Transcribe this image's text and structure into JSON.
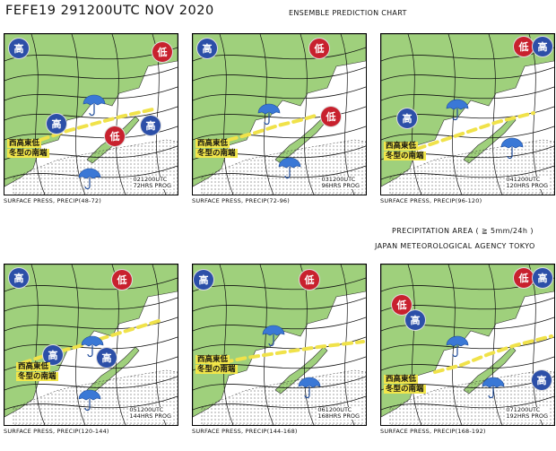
{
  "header": {
    "title": "FEFE19  291200UTC NOV 2020",
    "subtitle": "ENSEMBLE PREDICTION CHART"
  },
  "legend": {
    "precip_area": "PRECIPITATION AREA ( ≧ 5mm/24h )",
    "agency": "JAPAN METEOROLOGICAL AGENCY TOKYO"
  },
  "labels": {
    "high": "高",
    "low": "低",
    "winter_line1": "西高東低",
    "winter_line2": "冬型の南端"
  },
  "panels": [
    {
      "caption": "SURFACE PRESS, PRECIP(48-72)",
      "valid": "021200UTC",
      "prog": "72HRS PROG"
    },
    {
      "caption": "SURFACE PRESS, PRECIP(72-96)",
      "valid": "031200UTC",
      "prog": "96HRS PROG"
    },
    {
      "caption": "SURFACE PRESS, PRECIP(96-120)",
      "valid": "041200UTC",
      "prog": "120HRS PROG"
    },
    {
      "caption": "SURFACE PRESS, PRECIP(120-144)",
      "valid": "051200UTC",
      "prog": "144HRS PROG"
    },
    {
      "caption": "SURFACE PRESS, PRECIP(144-168)",
      "valid": "061200UTC",
      "prog": "168HRS PROG"
    },
    {
      "caption": "SURFACE PRESS, PRECIP(168-192)",
      "valid": "071200UTC",
      "prog": "192HRS PROG"
    }
  ],
  "colors": {
    "land": "#9fd07c",
    "high": "#2c4fa8",
    "low": "#c8212e",
    "front": "#f0e24a",
    "label_bg": "#f2e64a",
    "umbrella": "#3a78d6"
  }
}
